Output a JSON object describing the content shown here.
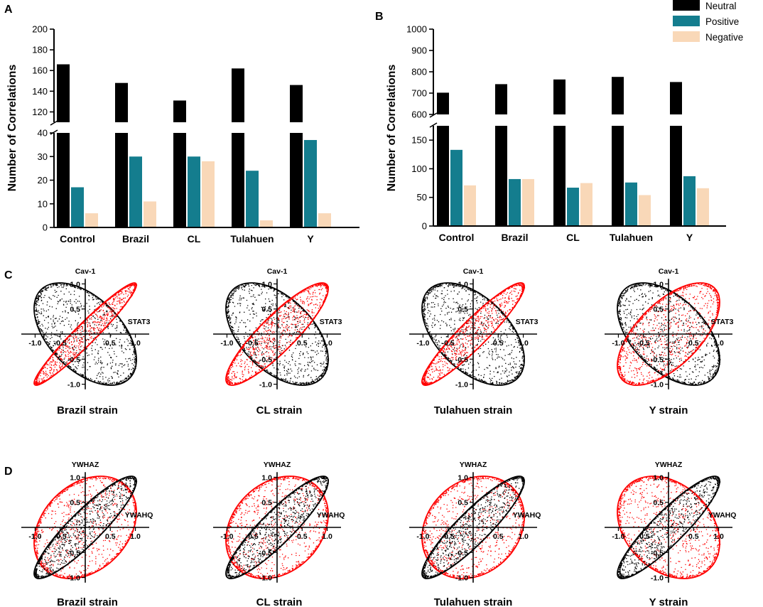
{
  "colors": {
    "neutral": "#000000",
    "positive": "#147d8e",
    "negative": "#f9d8b8",
    "red": "#ff0000"
  },
  "legend": {
    "items": [
      {
        "label": "Neutral",
        "color": "#000000"
      },
      {
        "label": "Positive",
        "color": "#147d8e"
      },
      {
        "label": "Negative",
        "color": "#f9d8b8"
      }
    ]
  },
  "chart_data": [
    {
      "panel": "A",
      "type": "bar",
      "ylabel": "Number of Correlations",
      "categories": [
        "Control",
        "Brazil",
        "CL",
        "Tulahuen",
        "Y"
      ],
      "series": [
        {
          "name": "Neutral",
          "values": [
            166,
            148,
            131,
            162,
            146
          ]
        },
        {
          "name": "Positive",
          "values": [
            17,
            30,
            30,
            24,
            37
          ]
        },
        {
          "name": "Negative",
          "values": [
            6,
            11,
            28,
            3,
            6
          ]
        }
      ],
      "broken_axis": {
        "lower": [
          0,
          40
        ],
        "upper": [
          110,
          200
        ]
      },
      "lower_ticks": [
        0,
        10,
        20,
        30,
        40
      ],
      "upper_ticks": [
        120,
        140,
        160,
        180,
        200
      ]
    },
    {
      "panel": "B",
      "type": "bar",
      "ylabel": "Number of Correlations",
      "categories": [
        "Control",
        "Brazil",
        "CL",
        "Tulahuen",
        "Y"
      ],
      "series": [
        {
          "name": "Neutral",
          "values": [
            702,
            742,
            764,
            776,
            752
          ]
        },
        {
          "name": "Positive",
          "values": [
            133,
            82,
            67,
            76,
            87
          ]
        },
        {
          "name": "Negative",
          "values": [
            71,
            82,
            75,
            54,
            66
          ]
        }
      ],
      "broken_axis": {
        "lower": [
          0,
          175
        ],
        "upper": [
          600,
          1000
        ]
      },
      "lower_ticks": [
        0,
        50,
        100,
        150
      ],
      "upper_ticks": [
        600,
        700,
        800,
        900,
        1000
      ]
    },
    {
      "panel": "C",
      "type": "scatter",
      "xlabel": "STAT3",
      "ylabel": "Cav-1",
      "tick_labels": [
        "-1.0",
        "-0.5",
        "0.5",
        "1.0"
      ],
      "subplots": [
        {
          "title": "Brazil strain",
          "control_r": -0.5,
          "infected_r": 0.96
        },
        {
          "title": "CL strain",
          "control_r": -0.5,
          "infected_r": 0.88
        },
        {
          "title": "Tulahuen strain",
          "control_r": -0.5,
          "infected_r": 0.93
        },
        {
          "title": "Y strain",
          "control_r": -0.5,
          "infected_r": 0.62
        }
      ]
    },
    {
      "panel": "D",
      "type": "scatter",
      "xlabel": "YWAHQ",
      "ylabel": "YWHAZ",
      "tick_labels": [
        "-1.0",
        "-0.5",
        "0.5",
        "1.0"
      ],
      "subplots": [
        {
          "title": "Brazil strain",
          "control_r": 0.9,
          "infected_r": 0.3
        },
        {
          "title": "CL strain",
          "control_r": 0.9,
          "infected_r": 0.25
        },
        {
          "title": "Tulahuen strain",
          "control_r": 0.9,
          "infected_r": 0.2
        },
        {
          "title": "Y strain",
          "control_r": 0.9,
          "infected_r": -0.3
        }
      ]
    }
  ]
}
